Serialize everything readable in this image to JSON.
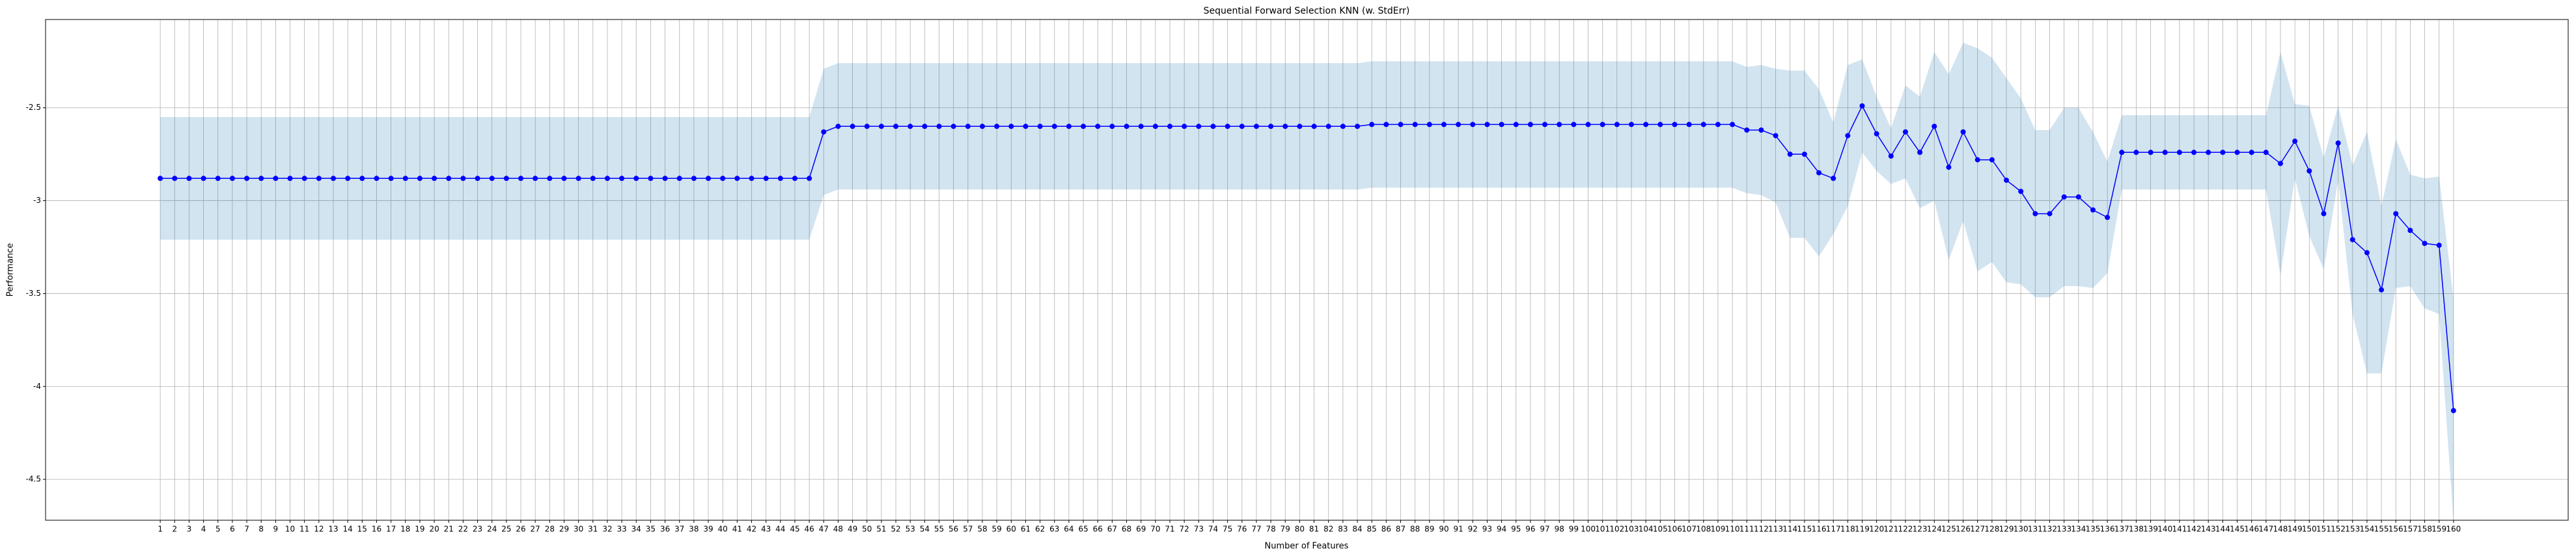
{
  "chart_data": {
    "type": "line",
    "title": "Sequential Forward Selection KNN (w. StdErr)",
    "x_label": "Number of Features",
    "y_label": "Performance",
    "x": [
      1,
      2,
      3,
      4,
      5,
      6,
      7,
      8,
      9,
      10,
      11,
      12,
      13,
      14,
      15,
      16,
      17,
      18,
      19,
      20,
      21,
      22,
      23,
      24,
      25,
      26,
      27,
      28,
      29,
      30,
      31,
      32,
      33,
      34,
      35,
      36,
      37,
      38,
      39,
      40,
      41,
      42,
      43,
      44,
      45,
      46,
      47,
      48,
      49,
      50,
      51,
      52,
      53,
      54,
      55,
      56,
      57,
      58,
      59,
      60,
      61,
      62,
      63,
      64,
      65,
      66,
      67,
      68,
      69,
      70,
      71,
      72,
      73,
      74,
      75,
      76,
      77,
      78,
      79,
      80,
      81,
      82,
      83,
      84,
      85,
      86,
      87,
      88,
      89,
      90,
      91,
      92,
      93,
      94,
      95,
      96,
      97,
      98,
      99,
      100,
      101,
      102,
      103,
      104,
      105,
      106,
      107,
      108,
      109,
      110,
      111,
      112,
      113,
      114,
      115,
      116,
      117,
      118,
      119,
      120,
      121,
      122,
      123,
      124,
      125,
      126,
      127,
      128,
      129,
      130,
      131,
      132,
      133,
      134,
      135,
      136,
      137,
      138,
      139,
      140,
      141,
      142,
      143,
      144,
      145,
      146,
      147,
      148,
      149,
      150,
      151,
      152,
      153,
      154,
      155,
      156,
      157,
      158,
      159,
      160
    ],
    "series": [
      {
        "color": "#0000ff",
        "values": [
          -2.88,
          -2.88,
          -2.88,
          -2.88,
          -2.88,
          -2.88,
          -2.88,
          -2.88,
          -2.88,
          -2.88,
          -2.88,
          -2.88,
          -2.88,
          -2.88,
          -2.88,
          -2.88,
          -2.88,
          -2.88,
          -2.88,
          -2.88,
          -2.88,
          -2.88,
          -2.88,
          -2.88,
          -2.88,
          -2.88,
          -2.88,
          -2.88,
          -2.88,
          -2.88,
          -2.88,
          -2.88,
          -2.88,
          -2.88,
          -2.88,
          -2.88,
          -2.88,
          -2.88,
          -2.88,
          -2.88,
          -2.88,
          -2.88,
          -2.88,
          -2.88,
          -2.88,
          -2.88,
          -2.63,
          -2.6,
          -2.6,
          -2.6,
          -2.6,
          -2.6,
          -2.6,
          -2.6,
          -2.6,
          -2.6,
          -2.6,
          -2.6,
          -2.6,
          -2.6,
          -2.6,
          -2.6,
          -2.6,
          -2.6,
          -2.6,
          -2.6,
          -2.6,
          -2.6,
          -2.6,
          -2.6,
          -2.6,
          -2.6,
          -2.6,
          -2.6,
          -2.6,
          -2.6,
          -2.6,
          -2.6,
          -2.6,
          -2.6,
          -2.6,
          -2.6,
          -2.6,
          -2.6,
          -2.59,
          -2.59,
          -2.59,
          -2.59,
          -2.59,
          -2.59,
          -2.59,
          -2.59,
          -2.59,
          -2.59,
          -2.59,
          -2.59,
          -2.59,
          -2.59,
          -2.59,
          -2.59,
          -2.59,
          -2.59,
          -2.59,
          -2.59,
          -2.59,
          -2.59,
          -2.59,
          -2.59,
          -2.59,
          -2.59,
          -2.62,
          -2.62,
          -2.65,
          -2.75,
          -2.75,
          -2.85,
          -2.88,
          -2.65,
          -2.49,
          -2.64,
          -2.76,
          -2.63,
          -2.74,
          -2.6,
          -2.82,
          -2.63,
          -2.78,
          -2.78,
          -2.89,
          -2.95,
          -3.07,
          -3.07,
          -2.98,
          -2.98,
          -3.05,
          -3.09,
          -2.74,
          -2.74,
          -2.74,
          -2.74,
          -2.74,
          -2.74,
          -2.74,
          -2.74,
          -2.74,
          -2.74,
          -2.74,
          -2.8,
          -2.68,
          -2.84,
          -3.07,
          -2.69,
          -3.21,
          -3.28,
          -3.48,
          -3.07,
          -3.16,
          -3.23,
          -3.24,
          -4.13
        ],
        "errors": [
          0.33,
          0.33,
          0.33,
          0.33,
          0.33,
          0.33,
          0.33,
          0.33,
          0.33,
          0.33,
          0.33,
          0.33,
          0.33,
          0.33,
          0.33,
          0.33,
          0.33,
          0.33,
          0.33,
          0.33,
          0.33,
          0.33,
          0.33,
          0.33,
          0.33,
          0.33,
          0.33,
          0.33,
          0.33,
          0.33,
          0.33,
          0.33,
          0.33,
          0.33,
          0.33,
          0.33,
          0.33,
          0.33,
          0.33,
          0.33,
          0.33,
          0.33,
          0.33,
          0.33,
          0.33,
          0.33,
          0.34,
          0.34,
          0.34,
          0.34,
          0.34,
          0.34,
          0.34,
          0.34,
          0.34,
          0.34,
          0.34,
          0.34,
          0.34,
          0.34,
          0.34,
          0.34,
          0.34,
          0.34,
          0.34,
          0.34,
          0.34,
          0.34,
          0.34,
          0.34,
          0.34,
          0.34,
          0.34,
          0.34,
          0.34,
          0.34,
          0.34,
          0.34,
          0.34,
          0.34,
          0.34,
          0.34,
          0.34,
          0.34,
          0.34,
          0.34,
          0.34,
          0.34,
          0.34,
          0.34,
          0.34,
          0.34,
          0.34,
          0.34,
          0.34,
          0.34,
          0.34,
          0.34,
          0.34,
          0.34,
          0.34,
          0.34,
          0.34,
          0.34,
          0.34,
          0.34,
          0.34,
          0.34,
          0.34,
          0.34,
          0.34,
          0.35,
          0.36,
          0.45,
          0.45,
          0.45,
          0.3,
          0.38,
          0.25,
          0.2,
          0.15,
          0.25,
          0.3,
          0.4,
          0.5,
          0.48,
          0.6,
          0.55,
          0.55,
          0.5,
          0.45,
          0.45,
          0.48,
          0.48,
          0.42,
          0.3,
          0.2,
          0.2,
          0.2,
          0.2,
          0.2,
          0.2,
          0.2,
          0.2,
          0.2,
          0.2,
          0.2,
          0.6,
          0.2,
          0.35,
          0.3,
          0.2,
          0.4,
          0.65,
          0.45,
          0.4,
          0.3,
          0.35,
          0.37,
          0.6
        ],
        "band_color": "#1f77b4"
      }
    ],
    "xlim": [
      -6.95,
      167.95
    ],
    "ylim": [
      -4.72,
      -2.025
    ],
    "xticks": [
      1,
      2,
      3,
      4,
      5,
      6,
      7,
      8,
      9,
      10,
      11,
      12,
      13,
      14,
      15,
      16,
      17,
      18,
      19,
      20,
      21,
      22,
      23,
      24,
      25,
      26,
      27,
      28,
      29,
      30,
      31,
      32,
      33,
      34,
      35,
      36,
      37,
      38,
      39,
      40,
      41,
      42,
      43,
      44,
      45,
      46,
      47,
      48,
      49,
      50,
      51,
      52,
      53,
      54,
      55,
      56,
      57,
      58,
      59,
      60,
      61,
      62,
      63,
      64,
      65,
      66,
      67,
      68,
      69,
      70,
      71,
      72,
      73,
      74,
      75,
      76,
      77,
      78,
      79,
      80,
      81,
      82,
      83,
      84,
      85,
      86,
      87,
      88,
      89,
      90,
      91,
      92,
      93,
      94,
      95,
      96,
      97,
      98,
      99,
      100,
      101,
      102,
      103,
      104,
      105,
      106,
      107,
      108,
      109,
      110,
      111,
      112,
      113,
      114,
      115,
      116,
      117,
      118,
      119,
      120,
      121,
      122,
      123,
      124,
      125,
      126,
      127,
      128,
      129,
      130,
      131,
      132,
      133,
      134,
      135,
      136,
      137,
      138,
      139,
      140,
      141,
      142,
      143,
      144,
      145,
      146,
      147,
      148,
      149,
      150,
      151,
      152,
      153,
      154,
      155,
      156,
      157,
      158,
      159,
      160
    ],
    "yticks": [
      -4.5,
      -4.0,
      -3.5,
      -3.0,
      -2.5
    ],
    "grid": true
  }
}
